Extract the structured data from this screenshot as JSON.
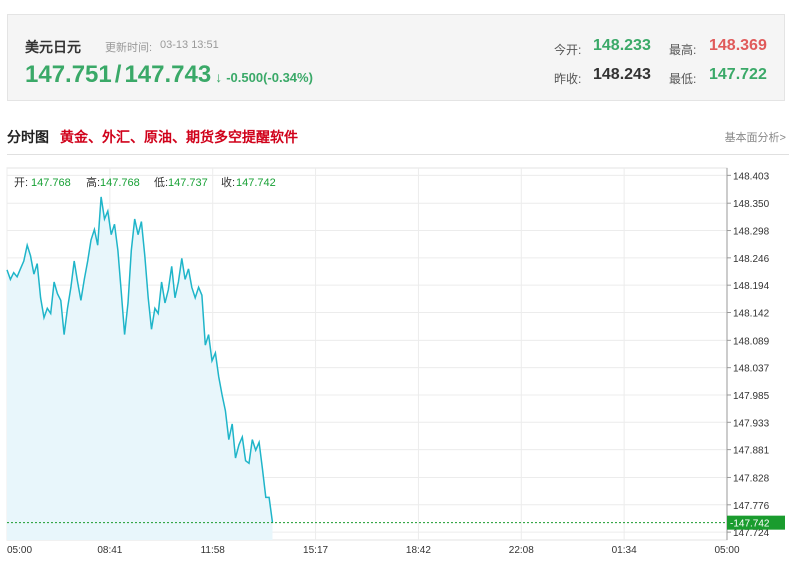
{
  "quote": {
    "name": "美元日元",
    "update_label": "更新时间:",
    "update_time": "03-13 13:51",
    "bid": "147.751",
    "separator": "/",
    "ask": "147.743",
    "arrow": "↓",
    "change": "-0.500(-0.34%)",
    "open_label": "今开:",
    "open": "148.233",
    "high_label": "最高:",
    "high": "148.369",
    "prev_close_label": "昨收:",
    "prev_close": "148.243",
    "low_label": "最低:",
    "low": "147.722"
  },
  "section": {
    "title": "分时图",
    "promo": "黄金、外汇、原油、期货多空提醒软件",
    "fundamental_link": "基本面分析>"
  },
  "colors": {
    "up_green": "#3aa968",
    "down_red": "#e05a5a",
    "line": "#1fb5c9",
    "fill": "#e8f6fb",
    "current_badge": "#1a9c2e",
    "ohlc_value": "#18a136"
  },
  "chart_data": {
    "type": "area",
    "ohlc": {
      "open_label": "开:",
      "open": "147.768",
      "high_label": "高:",
      "high": "147.768",
      "low_label": "低:",
      "low": "147.737",
      "close_label": "收:",
      "close": "147.742"
    },
    "x_ticks": [
      "05:00",
      "08:41",
      "11:58",
      "15:17",
      "18:42",
      "22:08",
      "01:34",
      "05:00"
    ],
    "y_ticks": [
      "148.403",
      "148.350",
      "148.298",
      "148.246",
      "148.194",
      "148.142",
      "148.089",
      "148.037",
      "147.985",
      "147.933",
      "147.881",
      "147.828",
      "147.776",
      "147.724"
    ],
    "ylim": [
      147.709,
      148.417
    ],
    "current_value": "-147.742",
    "current_level": 147.742,
    "grid": true,
    "series": [
      {
        "values": [
          148.223,
          148.205,
          148.218,
          148.21,
          148.225,
          148.24,
          148.27,
          148.25,
          148.215,
          148.235,
          148.17,
          148.132,
          148.15,
          148.14,
          148.2,
          148.178,
          148.165,
          148.1,
          148.15,
          148.19,
          148.24,
          148.2,
          148.165,
          148.205,
          148.24,
          148.28,
          148.3,
          148.27,
          148.362,
          148.32,
          148.335,
          148.29,
          148.31,
          148.26,
          148.18,
          148.1,
          148.16,
          148.26,
          148.32,
          148.29,
          148.315,
          148.25,
          148.17,
          148.11,
          148.15,
          148.14,
          148.2,
          148.16,
          148.185,
          148.23,
          148.17,
          148.2,
          148.245,
          148.205,
          148.225,
          148.19,
          148.17,
          148.19,
          148.175,
          148.08,
          148.1,
          148.05,
          148.065,
          148.02,
          147.985,
          147.955,
          147.9,
          147.93,
          147.865,
          147.89,
          147.905,
          147.86,
          147.855,
          147.9,
          147.88,
          147.895,
          147.845,
          147.79,
          147.79,
          147.742
        ]
      }
    ],
    "series_end_time": "13:51"
  }
}
